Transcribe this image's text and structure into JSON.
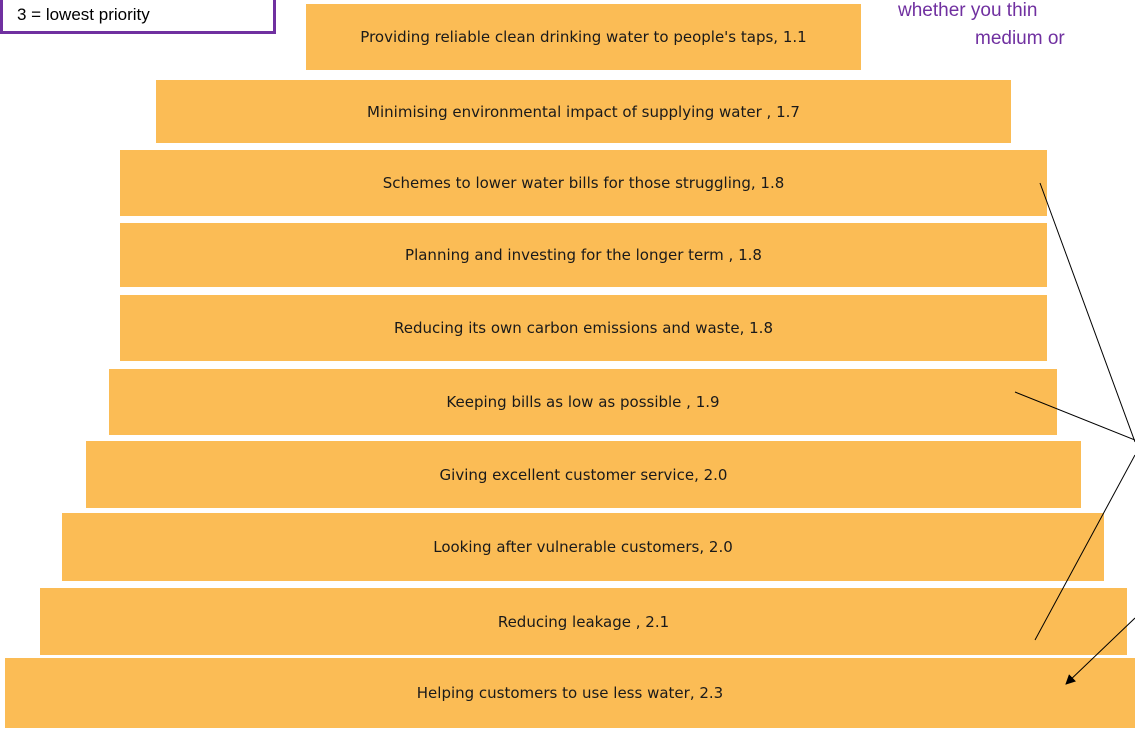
{
  "legend_box": "3 = lowest priority",
  "note": [
    "whether you thin",
    "medium or"
  ],
  "items": [
    "Providing reliable clean drinking water to people's taps, 1.1",
    "Minimising environmental impact of supplying water , 1.7",
    "Schemes to lower water bills for those struggling, 1.8",
    "Planning and investing for the longer term , 1.8",
    "Reducing its own carbon emissions and waste, 1.8",
    "Keeping bills as low as possible , 1.9",
    "Giving excellent customer service, 2.0",
    "Looking after vulnerable customers, 2.0",
    "Reducing leakage , 2.1",
    "Helping customers to use less water, 2.3"
  ]
}
